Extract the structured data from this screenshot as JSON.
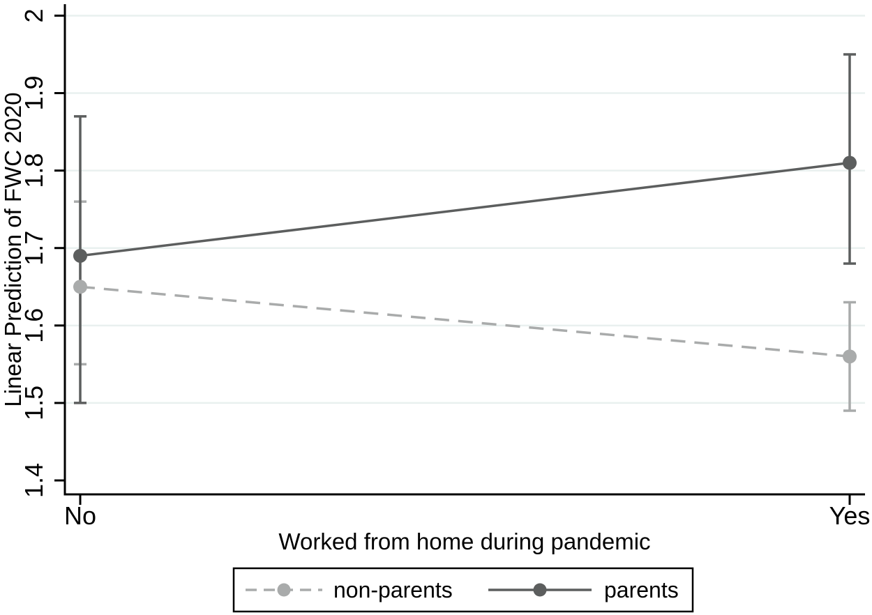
{
  "chart_data": {
    "type": "line",
    "title": "",
    "xlabel": "Worked from home during pandemic",
    "ylabel": "Linear Prediction of FWC 2020",
    "categories": [
      "No",
      "Yes"
    ],
    "series": [
      {
        "name": "non-parents",
        "line_style": "dashed",
        "color": "#a9abab",
        "values": [
          1.65,
          1.56
        ],
        "ci_low": [
          1.55,
          1.49
        ],
        "ci_high": [
          1.76,
          1.63
        ]
      },
      {
        "name": "parents",
        "line_style": "solid",
        "color": "#5c5e5e",
        "values": [
          1.69,
          1.81
        ],
        "ci_low": [
          1.5,
          1.68
        ],
        "ci_high": [
          1.87,
          1.95
        ]
      }
    ],
    "y_ticks": [
      2,
      1.9,
      1.8,
      1.7,
      1.6,
      1.5,
      1.4
    ],
    "y_tick_labels": [
      "2",
      "1.9",
      "1.8",
      "1.7",
      "1.6",
      "1.5",
      "1.4"
    ],
    "grid_values": [
      2,
      1.9,
      1.8,
      1.7,
      1.6,
      1.5
    ],
    "ylim": [
      1.382,
      2.013
    ],
    "grid": true,
    "legend_position": "bottom",
    "legend_entries": [
      "non-parents",
      "parents"
    ],
    "colors": {
      "grid": "#e9f0ef",
      "axis": "#000000",
      "background": "#ffffff",
      "nonparents": "#a9abab",
      "parents": "#5c5e5e"
    }
  }
}
